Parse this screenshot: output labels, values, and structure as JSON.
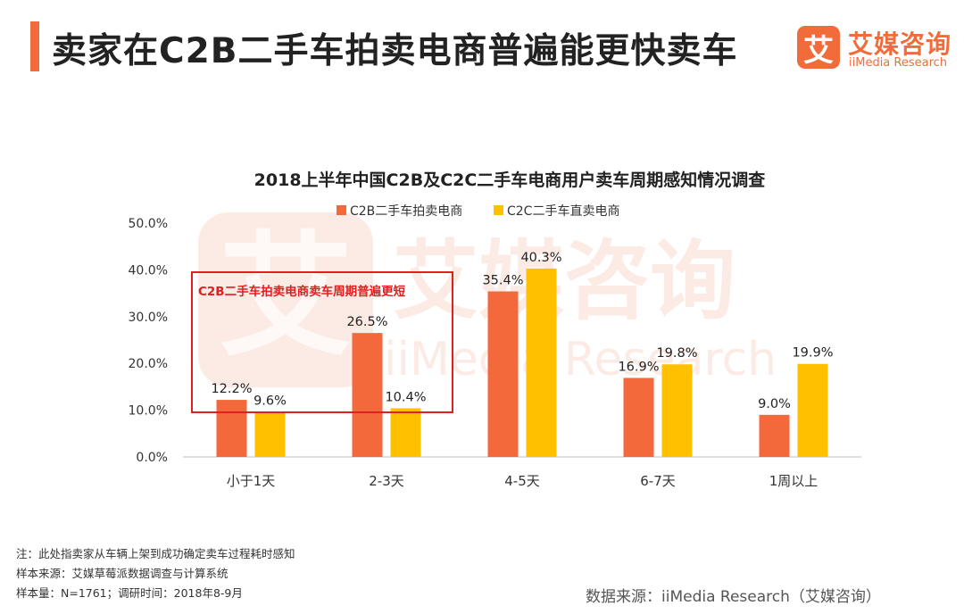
{
  "page": {
    "title": "卖家在C2B二手车拍卖电商普遍能更快卖车",
    "logo": {
      "mark": "艾",
      "name_cn": "艾媒咨询",
      "name_en": "iiMedia Research"
    },
    "notes": [
      "注：此处指卖家从车辆上架到成功确定卖车过程耗时感知",
      "样本来源：艾媒草莓派数据调查与计算系统",
      "样本量：N=1761；调研时间：2018年8-9月"
    ],
    "source": "数据来源：iiMedia Research（艾媒咨询）"
  },
  "chart_data": {
    "type": "bar",
    "title": "2018上半年中国C2B及C2C二手车电商用户卖车周期感知情况调查",
    "categories": [
      "小于1天",
      "2-3天",
      "4-5天",
      "6-7天",
      "1周以上"
    ],
    "series": [
      {
        "name": "C2B二手车拍卖电商",
        "values": [
          12.2,
          26.5,
          35.4,
          16.9,
          9.0
        ],
        "color": "#f4693b"
      },
      {
        "name": "C2C二手车直卖电商",
        "values": [
          9.6,
          10.4,
          40.3,
          19.8,
          19.9
        ],
        "color": "#ffc000"
      }
    ],
    "ylim": [
      0,
      50
    ],
    "yticks": [
      "0.0%",
      "10.0%",
      "20.0%",
      "30.0%",
      "40.0%",
      "50.0%"
    ],
    "value_suffix": "%",
    "annotation": {
      "text": "C2B二手车拍卖电商卖车周期普遍更短",
      "color": "#e02020"
    },
    "watermark": {
      "mark": "艾",
      "name_cn": "艾媒咨询",
      "name_en": "iiMedia Research"
    }
  }
}
